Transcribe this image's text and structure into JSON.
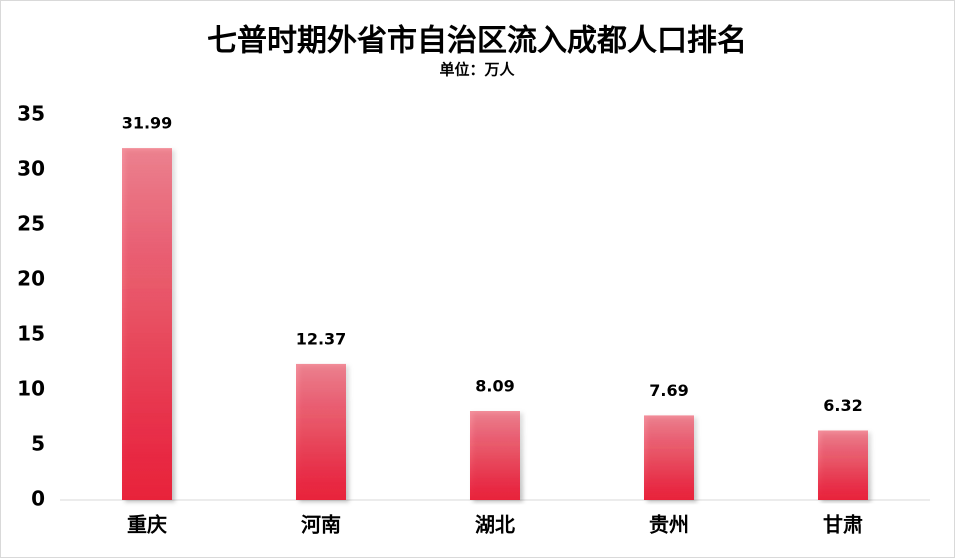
{
  "chart_data": {
    "type": "bar",
    "title": "七普时期外省市自治区流入成都人口排名",
    "subtitle": "单位：万人",
    "categories": [
      "重庆",
      "河南",
      "湖北",
      "贵州",
      "甘肃"
    ],
    "values": [
      31.99,
      12.37,
      8.09,
      7.69,
      6.32
    ],
    "color": "#e8203a",
    "ylim": [
      0,
      35
    ],
    "yticks": [
      0,
      5,
      10,
      15,
      20,
      25,
      30,
      35
    ],
    "grid": false
  }
}
